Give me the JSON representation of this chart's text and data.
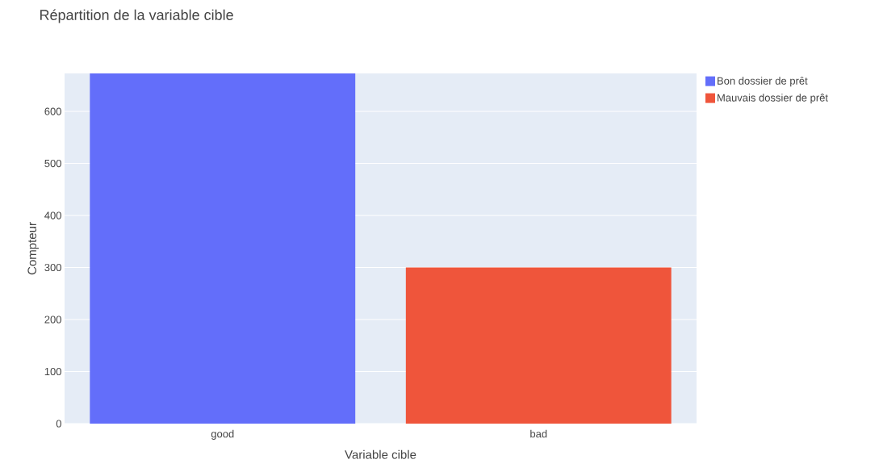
{
  "chart_data": {
    "type": "bar",
    "title": "Répartition de la variable cible",
    "xlabel": "Variable cible",
    "ylabel": "Compteur",
    "categories": [
      "good",
      "bad"
    ],
    "series": [
      {
        "name": "Bon dossier de prêt",
        "color": "#636efa",
        "values": [
          673,
          null
        ]
      },
      {
        "name": "Mauvais dossier de prêt",
        "color": "#ef553b",
        "values": [
          null,
          300
        ]
      }
    ],
    "ylim": [
      0,
      673
    ],
    "yticks": [
      0,
      100,
      200,
      300,
      400,
      500,
      600
    ],
    "grid": "y",
    "legend": "top right"
  }
}
